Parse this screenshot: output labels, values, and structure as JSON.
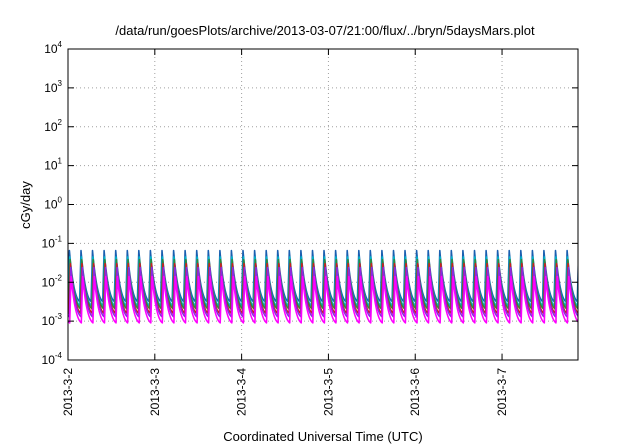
{
  "chart_data": {
    "type": "line",
    "title": "/data/run/goesPlots/archive/2013-03-07/21:00/flux/../bryn/5daysMars.plot",
    "xlabel": "Coordinated Universal Time (UTC)",
    "ylabel": "cGy/day",
    "yscale": "log",
    "ylim": [
      0.0001,
      10000
    ],
    "y_ticks": [
      {
        "value": 0.0001,
        "base": "10",
        "exp": "-4"
      },
      {
        "value": 0.001,
        "base": "10",
        "exp": "-3"
      },
      {
        "value": 0.01,
        "base": "10",
        "exp": "-2"
      },
      {
        "value": 0.1,
        "base": "10",
        "exp": "-1"
      },
      {
        "value": 1,
        "base": "10",
        "exp": "0"
      },
      {
        "value": 10,
        "base": "10",
        "exp": "1"
      },
      {
        "value": 100,
        "base": "10",
        "exp": "2"
      },
      {
        "value": 1000,
        "base": "10",
        "exp": "3"
      },
      {
        "value": 10000,
        "base": "10",
        "exp": "4"
      }
    ],
    "xlim": [
      "2013-03-02T00:00",
      "2013-03-07T21:00"
    ],
    "x_ticks": [
      {
        "value": "2013-03-02T00:00",
        "label": "2013-3-2"
      },
      {
        "value": "2013-03-03T00:00",
        "label": "2013-3-3"
      },
      {
        "value": "2013-03-04T00:00",
        "label": "2013-3-4"
      },
      {
        "value": "2013-03-05T00:00",
        "label": "2013-3-5"
      },
      {
        "value": "2013-03-06T00:00",
        "label": "2013-3-6"
      },
      {
        "value": "2013-03-07T00:00",
        "label": "2013-3-7"
      }
    ],
    "grid": true,
    "cycle_hours": 3.2,
    "series": [
      {
        "color": "#1a5fb0",
        "peak": 0.065,
        "trough": 0.0032
      },
      {
        "color": "#00b5c8",
        "peak": 0.045,
        "trough": 0.0025
      },
      {
        "color": "#2e8b3a",
        "peak": 0.038,
        "trough": 0.0021
      },
      {
        "color": "#cc1f1f",
        "peak": 0.03,
        "trough": 0.0016
      },
      {
        "color": "#8a2be2",
        "peak": 0.024,
        "trough": 0.0013
      },
      {
        "color": "#ff00ff",
        "peak": 0.014,
        "trough": 0.0009
      }
    ]
  }
}
